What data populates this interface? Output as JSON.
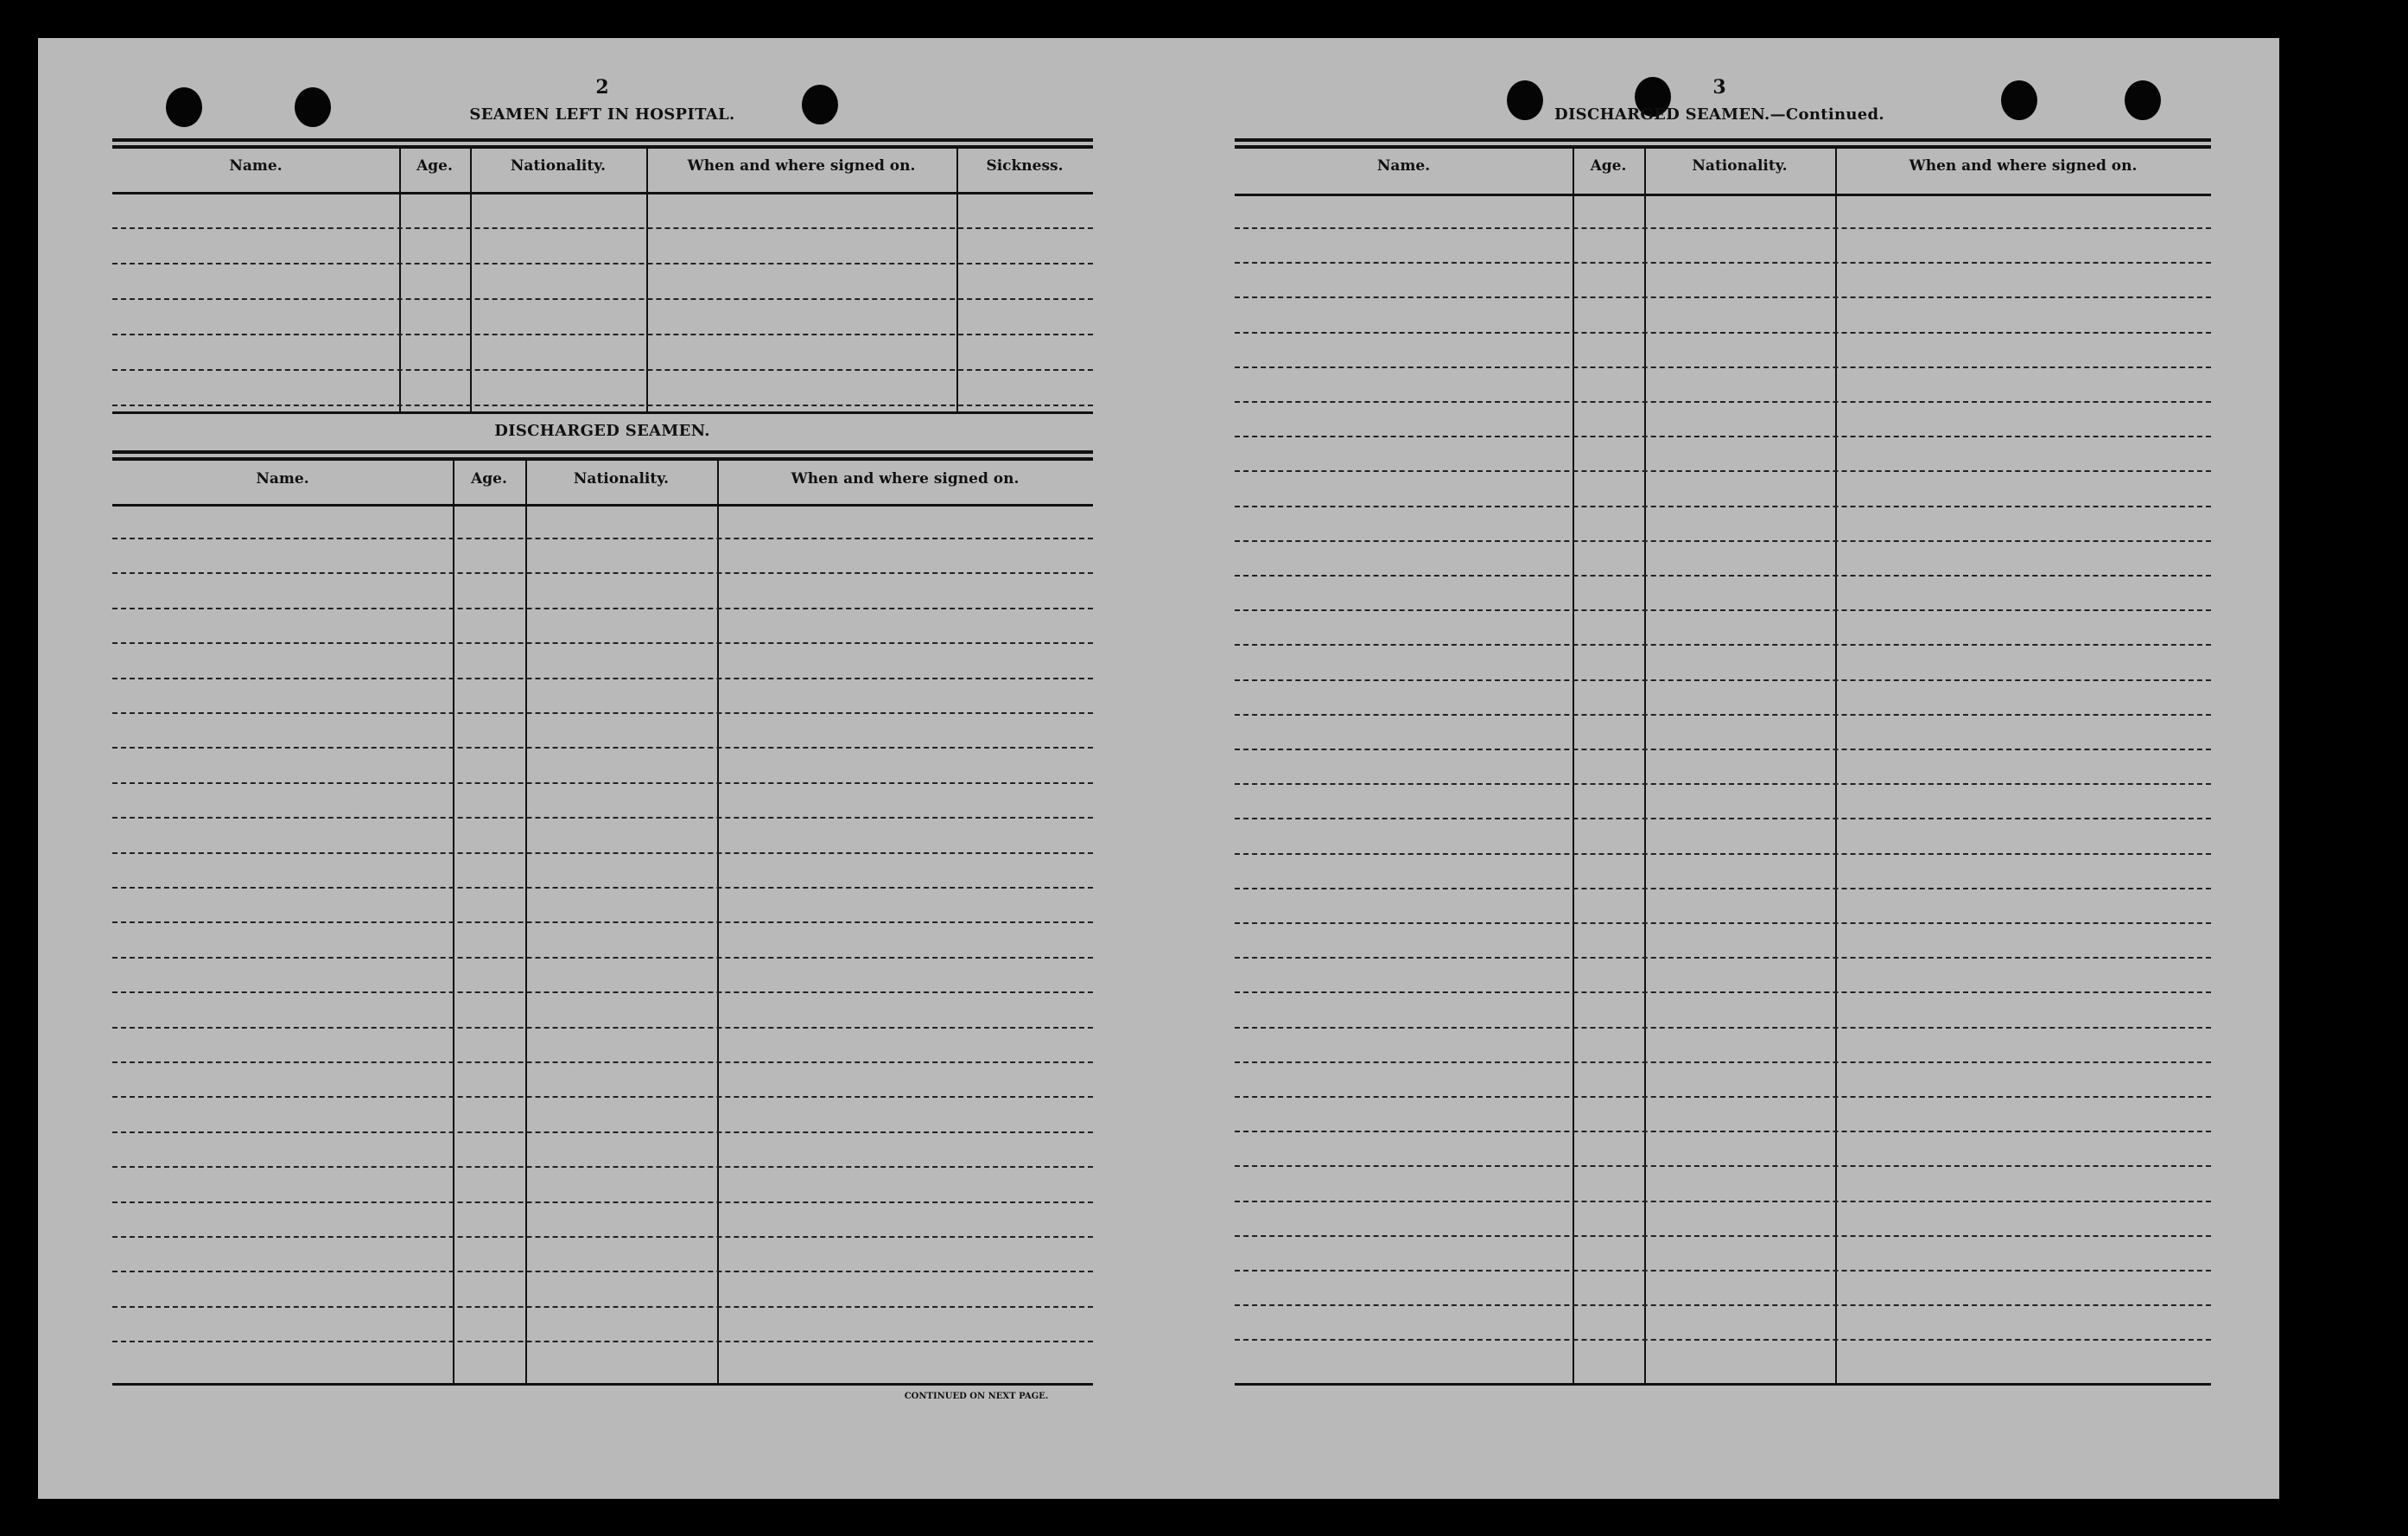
{
  "left_page": {
    "page_number": "2",
    "hospital_section": {
      "title": "SEAMEN LEFT IN HOSPITAL.",
      "columns": [
        "Name.",
        "Age.",
        "Nationality.",
        "When and where signed on.",
        "Sickness."
      ]
    },
    "discharged_section": {
      "title": "DISCHARGED SEAMEN.",
      "columns": [
        "Name.",
        "Age.",
        "Nationality.",
        "When and where signed on."
      ]
    },
    "footer": "CONTINUED ON NEXT PAGE."
  },
  "right_page": {
    "page_number": "3",
    "discharged_continued_section": {
      "title": "DISCHARGED SEAMEN.—Continued.",
      "columns": [
        "Name.",
        "Age.",
        "Nationality.",
        "When and where signed on."
      ]
    }
  },
  "colors": {
    "paper": "#b9b9b9",
    "background": "#000000",
    "ink": "#111111"
  }
}
